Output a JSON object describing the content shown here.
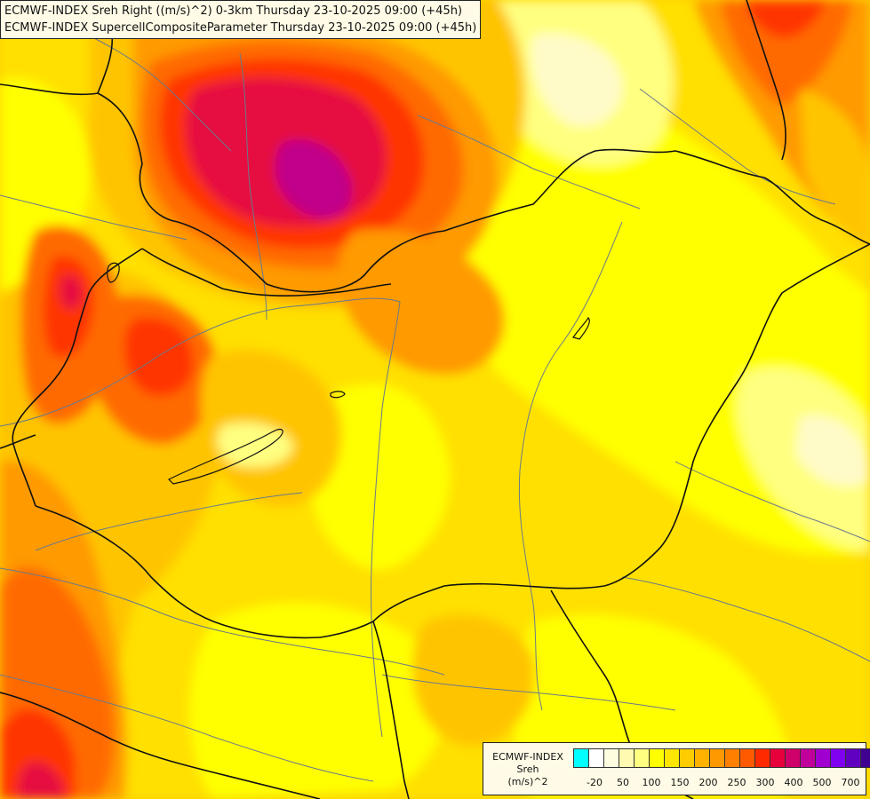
{
  "header": {
    "line1": "ECMWF-INDEX Sreh Right ((m/s)^2) 0-3km Thursday 23-10-2025 09:00 (+45h)",
    "line2": "ECMWF-INDEX SupercellCompositeParameter Thursday 23-10-2025 09:00 (+45h)"
  },
  "legend": {
    "title": "ECMWF-INDEX",
    "variable": "Sreh",
    "unit": "(m/s)^2",
    "tick_labels": [
      "-20",
      "50",
      "100",
      "150",
      "200",
      "250",
      "300",
      "400",
      "500",
      "700"
    ],
    "colors": [
      "#00ffff",
      "#ffffff",
      "#fffde0",
      "#fffab0",
      "#ffff80",
      "#ffff00",
      "#ffe600",
      "#ffcc00",
      "#ffb200",
      "#ff9900",
      "#ff7f00",
      "#ff5a00",
      "#ff2a00",
      "#e8003c",
      "#d0006a",
      "#c0009a",
      "#a000d0",
      "#8000f0",
      "#6000c0",
      "#400090",
      "#1a0060"
    ]
  },
  "map_colors": {
    "very_light": "#fffbc8",
    "light_yellow": "#ffff60",
    "yellow": "#ffff00",
    "gold": "#ffe000",
    "amber": "#ffc400",
    "orange": "#ff9a00",
    "dark_orange": "#ff6a00",
    "red": "#ff3500",
    "crimson": "#e60a40",
    "magenta": "#c0008a",
    "border": "#111111",
    "river": "#6a7a8a"
  }
}
